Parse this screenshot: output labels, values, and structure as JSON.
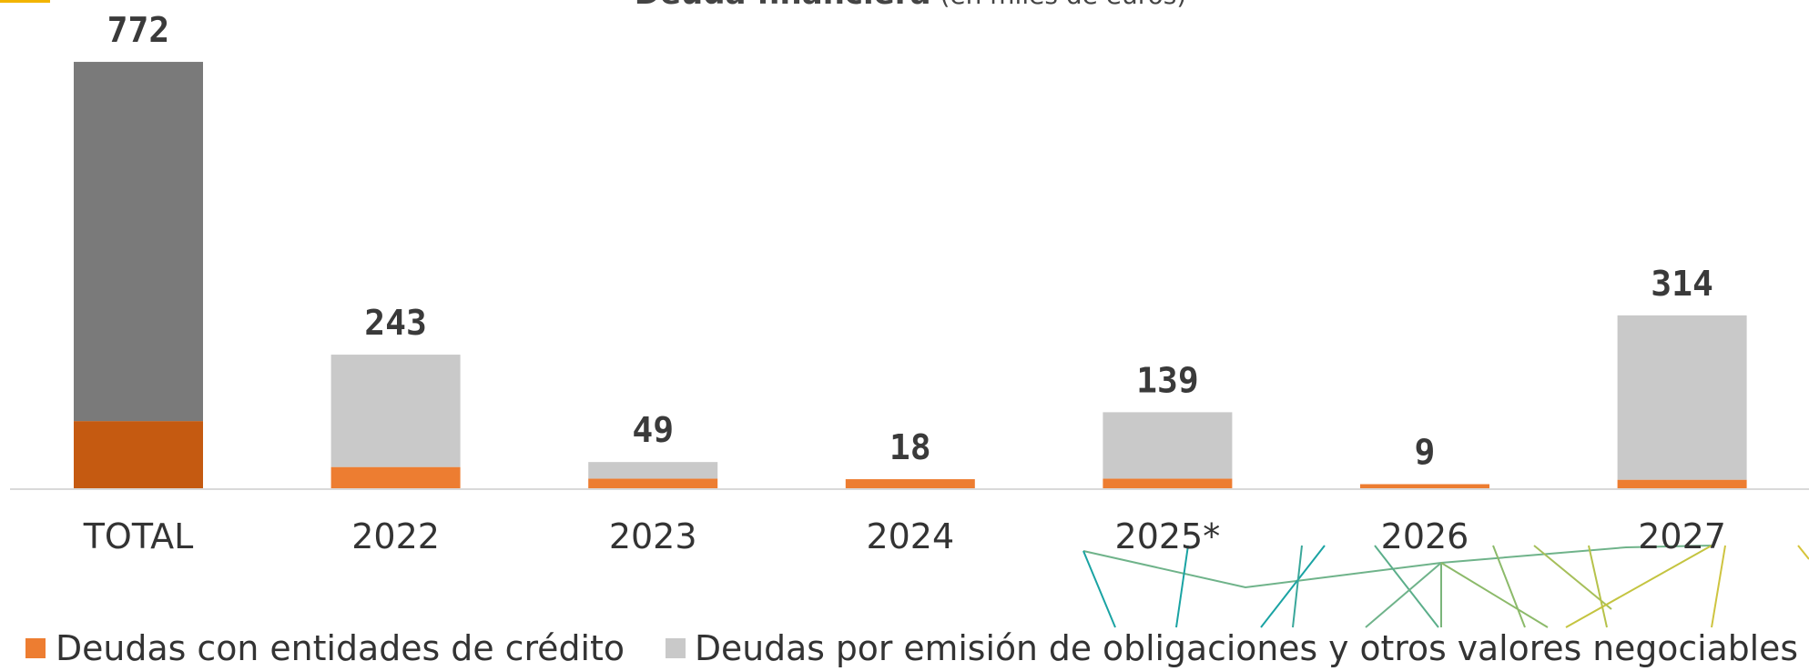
{
  "chart_data": {
    "type": "stacked_bar",
    "title": "Deuda financiera",
    "subtitle": "(en miles de euros)",
    "categories": [
      "TOTAL",
      "2022",
      "2023",
      "2024",
      "2025*",
      "2026",
      "2027"
    ],
    "series": [
      {
        "name": "Deudas con entidades de crédito",
        "color": "#ed7d31",
        "colors": [
          "#c55a11",
          "#ed7d31",
          "#ed7d31",
          "#ed7d31",
          "#ed7d31",
          "#ed7d31",
          "#ed7d31"
        ],
        "values": [
          123,
          40,
          19,
          18,
          19,
          9,
          17
        ]
      },
      {
        "name": "Deudas por emisión de obligaciones y otros valores negociables",
        "color": "#c9c9c9",
        "colors": [
          "#7a7a7a",
          "#c9c9c9",
          "#c9c9c9",
          "#c9c9c9",
          "#c9c9c9",
          "#c9c9c9",
          "#c9c9c9"
        ],
        "values": [
          649,
          203,
          30,
          0,
          120,
          0,
          297
        ]
      }
    ],
    "totals": [
      772,
      243,
      49,
      18,
      139,
      9,
      314
    ],
    "ylim": [
      0,
      800
    ]
  }
}
